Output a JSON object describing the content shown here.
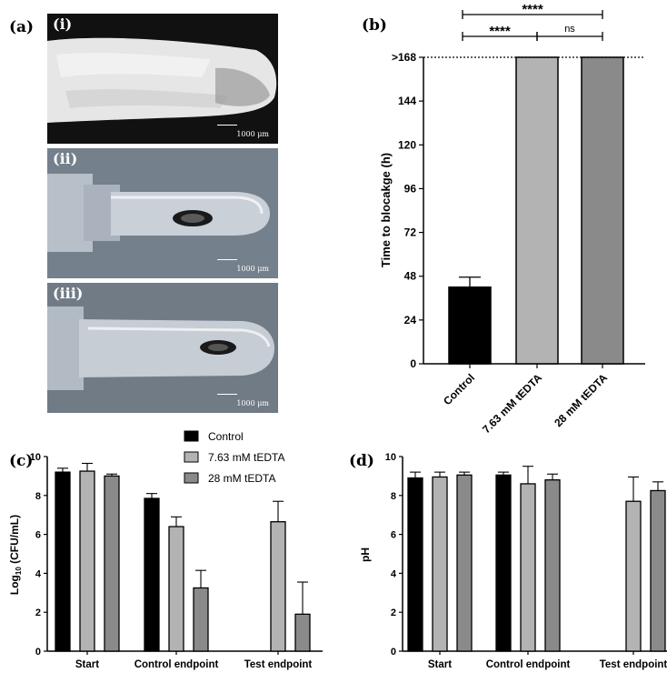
{
  "panels": {
    "a": "(a)",
    "b": "(b)",
    "c": "(c)",
    "d": "(d)"
  },
  "photos": [
    {
      "label": "(i)",
      "scale": "1000 μm"
    },
    {
      "label": "(ii)",
      "scale": "1000 μm"
    },
    {
      "label": "(iii)",
      "scale": "1000 μm"
    }
  ],
  "legend": [
    "Control",
    "7.63 mM tEDTA",
    "28 mM tEDTA"
  ],
  "colors": {
    "control": "#000000",
    "low": "#b3b3b3",
    "high": "#8a8a8a"
  },
  "chart_data": [
    {
      "type": "bar",
      "panel": "b",
      "ylabel": "Time to blocakge (h)",
      "categories": [
        "Control",
        "7.63 mM tEDTA",
        "28 mM tEDTA"
      ],
      "values": [
        42,
        168,
        168
      ],
      "errors": [
        5.5,
        0,
        0
      ],
      "ylim": [
        0,
        168
      ],
      "yticks": [
        0,
        24,
        48,
        72,
        96,
        120,
        144,
        168
      ],
      "ytick_labels": [
        "0",
        "24",
        "48",
        "72",
        "96",
        "120",
        "144",
        ">168"
      ],
      "significance": [
        {
          "label": "****",
          "from": 0,
          "to": 2
        },
        {
          "label": "****",
          "from": 0,
          "to": 1
        },
        {
          "label": "ns",
          "from": 1,
          "to": 2
        }
      ]
    },
    {
      "type": "bar",
      "panel": "c",
      "ylabel": "Log10 (CFU/mL)",
      "ylabel_main": "Log",
      "ylabel_sub": "10",
      "ylabel_rest": " (CFU/mL)",
      "categories": [
        "Start",
        "Control endpoint",
        "Test endpoint"
      ],
      "series": [
        {
          "name": "Control",
          "values": [
            9.2,
            7.85,
            null
          ],
          "errors": [
            0.2,
            0.25,
            null
          ]
        },
        {
          "name": "7.63 mM tEDTA",
          "values": [
            9.25,
            6.4,
            6.65
          ],
          "errors": [
            0.4,
            0.5,
            1.05
          ]
        },
        {
          "name": "28 mM tEDTA",
          "values": [
            9.0,
            3.25,
            1.9
          ],
          "errors": [
            0.1,
            0.9,
            1.65
          ]
        }
      ],
      "ylim": [
        0,
        10
      ],
      "yticks": [
        0,
        2,
        4,
        6,
        8,
        10
      ]
    },
    {
      "type": "bar",
      "panel": "d",
      "ylabel": "pH",
      "categories": [
        "Start",
        "Control endpoint",
        "Test endpoint"
      ],
      "series": [
        {
          "name": "Control",
          "values": [
            8.9,
            9.05,
            null
          ],
          "errors": [
            0.3,
            0.15,
            null
          ]
        },
        {
          "name": "7.63 mM tEDTA",
          "values": [
            8.95,
            8.6,
            7.7
          ],
          "errors": [
            0.25,
            0.9,
            1.25
          ]
        },
        {
          "name": "28 mM tEDTA",
          "values": [
            9.05,
            8.8,
            8.25
          ],
          "errors": [
            0.15,
            0.3,
            0.45
          ]
        }
      ],
      "ylim": [
        0,
        10
      ],
      "yticks": [
        0,
        2,
        4,
        6,
        8,
        10
      ]
    }
  ]
}
